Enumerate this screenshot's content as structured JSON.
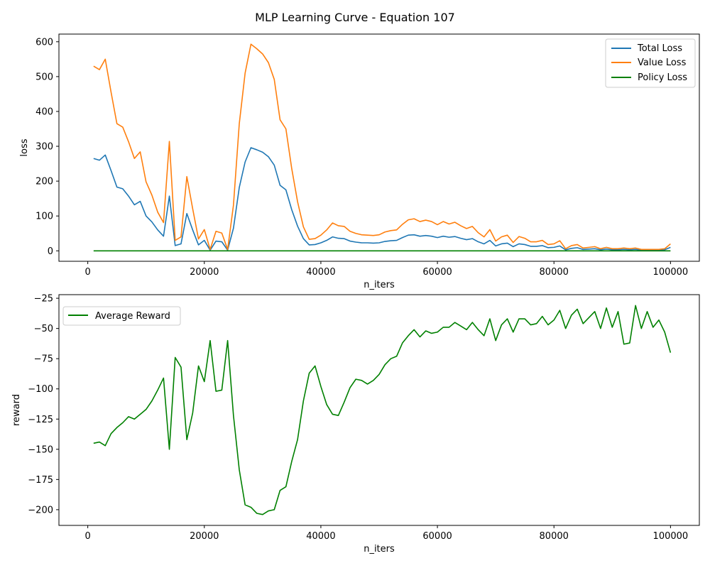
{
  "figure": {
    "title": "MLP Learning Curve - Equation 107"
  },
  "chart_data": [
    {
      "type": "line",
      "xlabel": "n_iters",
      "ylabel": "loss",
      "xlim": [
        -4950,
        104950
      ],
      "ylim": [
        -30,
        622
      ],
      "xticks": [
        0,
        20000,
        40000,
        60000,
        80000,
        100000
      ],
      "yticks": [
        0,
        100,
        200,
        300,
        400,
        500,
        600
      ],
      "grid": false,
      "legend": "top-right",
      "x": [
        1000,
        2000,
        3000,
        4000,
        5000,
        6000,
        7000,
        8000,
        9000,
        10000,
        11000,
        12000,
        13000,
        14000,
        15000,
        16000,
        17000,
        18000,
        19000,
        20000,
        21000,
        22000,
        23000,
        24000,
        25000,
        26000,
        27000,
        28000,
        29000,
        30000,
        31000,
        32000,
        33000,
        34000,
        35000,
        36000,
        37000,
        38000,
        39000,
        40000,
        41000,
        42000,
        43000,
        44000,
        45000,
        46000,
        47000,
        48000,
        49000,
        50000,
        51000,
        52000,
        53000,
        54000,
        55000,
        56000,
        57000,
        58000,
        59000,
        60000,
        61000,
        62000,
        63000,
        64000,
        65000,
        66000,
        67000,
        68000,
        69000,
        70000,
        71000,
        72000,
        73000,
        74000,
        75000,
        76000,
        77000,
        78000,
        79000,
        80000,
        81000,
        82000,
        83000,
        84000,
        85000,
        86000,
        87000,
        88000,
        89000,
        90000,
        91000,
        92000,
        93000,
        94000,
        95000,
        96000,
        97000,
        98000,
        99000,
        100000
      ],
      "series": [
        {
          "name": "Total Loss",
          "color": "#1f77b4",
          "values": [
            265,
            260,
            275,
            230,
            183,
            178,
            157,
            132,
            142,
            100,
            83,
            60,
            42,
            157,
            15,
            20,
            107,
            60,
            17,
            30,
            2,
            28,
            26,
            2,
            65,
            182,
            255,
            296,
            290,
            283,
            270,
            246,
            188,
            175,
            118,
            71,
            35,
            17,
            18,
            23,
            30,
            40,
            36,
            35,
            28,
            25,
            23,
            23,
            22,
            23,
            27,
            29,
            30,
            38,
            45,
            46,
            42,
            44,
            42,
            38,
            42,
            39,
            41,
            36,
            32,
            35,
            26,
            20,
            30,
            14,
            20,
            22,
            12,
            20,
            18,
            13,
            13,
            15,
            9,
            10,
            14,
            3,
            7,
            9,
            4,
            5,
            6,
            3,
            5,
            3,
            3,
            4,
            3,
            4,
            2,
            2,
            2,
            2,
            3,
            10
          ]
        },
        {
          "name": "Value Loss",
          "color": "#ff7f0e",
          "values": [
            530,
            520,
            550,
            455,
            365,
            355,
            313,
            265,
            284,
            198,
            160,
            111,
            81,
            314,
            30,
            40,
            213,
            121,
            34,
            61,
            4,
            56,
            51,
            4,
            131,
            365,
            510,
            593,
            580,
            565,
            540,
            492,
            376,
            350,
            236,
            141,
            69,
            33,
            35,
            45,
            60,
            80,
            72,
            70,
            56,
            50,
            46,
            45,
            44,
            46,
            54,
            58,
            60,
            76,
            89,
            92,
            84,
            88,
            84,
            75,
            84,
            77,
            82,
            72,
            64,
            70,
            52,
            40,
            61,
            28,
            40,
            45,
            24,
            41,
            36,
            26,
            26,
            30,
            18,
            20,
            29,
            6,
            15,
            18,
            8,
            10,
            12,
            6,
            10,
            6,
            6,
            8,
            6,
            8,
            4,
            4,
            4,
            4,
            6,
            20
          ]
        },
        {
          "name": "Policy Loss",
          "color": "#008000",
          "values": [
            0,
            0,
            0,
            0,
            0,
            0,
            0,
            0,
            0,
            0,
            0,
            0,
            0,
            0,
            0,
            0,
            0,
            0,
            0,
            0,
            0,
            0,
            0,
            0,
            0,
            0,
            0,
            0,
            0,
            0,
            0,
            0,
            0,
            0,
            0,
            0,
            0,
            0,
            0,
            0,
            0,
            0,
            0,
            0,
            0,
            0,
            0,
            0,
            0,
            0,
            0,
            0,
            0,
            0,
            0,
            0,
            0,
            0,
            0,
            0,
            0,
            0,
            0,
            0,
            0,
            0,
            0,
            0,
            0,
            0,
            0,
            0,
            0,
            0,
            0,
            0,
            0,
            0,
            0,
            0,
            0,
            0,
            0,
            0,
            0,
            0,
            0,
            0,
            0,
            0,
            0,
            0,
            0,
            0,
            0,
            0,
            0,
            0,
            0,
            0
          ]
        }
      ]
    },
    {
      "type": "line",
      "xlabel": "n_iters",
      "ylabel": "reward",
      "xlim": [
        -4950,
        104950
      ],
      "ylim": [
        -213,
        -22
      ],
      "xticks": [
        0,
        20000,
        40000,
        60000,
        80000,
        100000
      ],
      "yticks": [
        -200,
        -175,
        -150,
        -125,
        -100,
        -75,
        -50,
        -25
      ],
      "grid": false,
      "legend": "top-left",
      "x": [
        1000,
        2000,
        3000,
        4000,
        5000,
        6000,
        7000,
        8000,
        9000,
        10000,
        11000,
        12000,
        13000,
        14000,
        15000,
        16000,
        17000,
        18000,
        19000,
        20000,
        21000,
        22000,
        23000,
        24000,
        25000,
        26000,
        27000,
        28000,
        29000,
        30000,
        31000,
        32000,
        33000,
        34000,
        35000,
        36000,
        37000,
        38000,
        39000,
        40000,
        41000,
        42000,
        43000,
        44000,
        45000,
        46000,
        47000,
        48000,
        49000,
        50000,
        51000,
        52000,
        53000,
        54000,
        55000,
        56000,
        57000,
        58000,
        59000,
        60000,
        61000,
        62000,
        63000,
        64000,
        65000,
        66000,
        67000,
        68000,
        69000,
        70000,
        71000,
        72000,
        73000,
        74000,
        75000,
        76000,
        77000,
        78000,
        79000,
        80000,
        81000,
        82000,
        83000,
        84000,
        85000,
        86000,
        87000,
        88000,
        89000,
        90000,
        91000,
        92000,
        93000,
        94000,
        95000,
        96000,
        97000,
        98000,
        99000,
        100000
      ],
      "series": [
        {
          "name": "Average Reward",
          "color": "#008000",
          "values": [
            -145,
            -144,
            -147,
            -137,
            -132,
            -128,
            -123,
            -125,
            -121,
            -117,
            -110,
            -101,
            -91,
            -150,
            -74,
            -82,
            -142,
            -120,
            -81,
            -94,
            -60,
            -102,
            -101,
            -60,
            -122,
            -167,
            -196,
            -198,
            -203,
            -204,
            -201,
            -200,
            -184,
            -181,
            -160,
            -142,
            -110,
            -87,
            -81,
            -98,
            -113,
            -121,
            -122,
            -111,
            -99,
            -92,
            -93,
            -96,
            -93,
            -88,
            -80,
            -75,
            -73,
            -62,
            -56,
            -51,
            -57,
            -52,
            -54,
            -53,
            -49,
            -49,
            -45,
            -48,
            -51,
            -45,
            -51,
            -56,
            -42,
            -60,
            -47,
            -42,
            -53,
            -42,
            -42,
            -47,
            -46,
            -40,
            -47,
            -43,
            -35,
            -50,
            -39,
            -34,
            -46,
            -41,
            -36,
            -50,
            -33,
            -49,
            -36,
            -63,
            -62,
            -31,
            -50,
            -36,
            -49,
            -43,
            -53,
            -70
          ]
        }
      ]
    }
  ]
}
